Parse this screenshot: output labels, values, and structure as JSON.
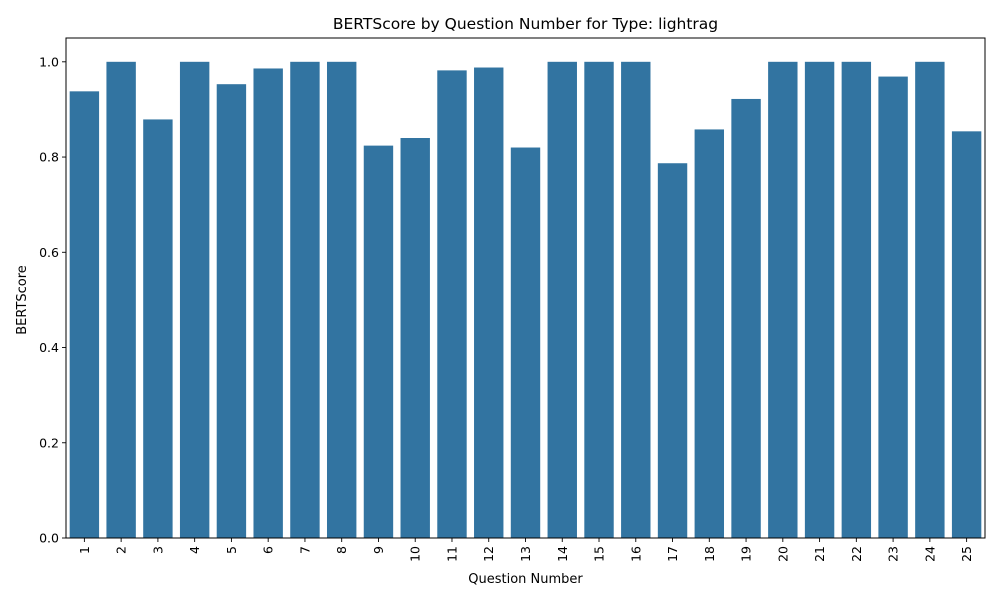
{
  "chart_data": {
    "type": "bar",
    "title": "BERTScore by Question Number for Type: lightrag",
    "xlabel": "Question Number",
    "ylabel": "BERTScore",
    "categories": [
      "1",
      "2",
      "3",
      "4",
      "5",
      "6",
      "7",
      "8",
      "9",
      "10",
      "11",
      "12",
      "13",
      "14",
      "15",
      "16",
      "17",
      "18",
      "19",
      "20",
      "21",
      "22",
      "23",
      "24",
      "25"
    ],
    "values": [
      0.938,
      1.0,
      0.879,
      1.0,
      0.953,
      0.986,
      1.0,
      1.0,
      0.824,
      0.84,
      0.982,
      0.988,
      0.82,
      1.0,
      1.0,
      1.0,
      0.787,
      0.858,
      0.922,
      1.0,
      1.0,
      1.0,
      0.969,
      1.0,
      0.854
    ],
    "yticks": [
      "0.0",
      "0.2",
      "0.4",
      "0.6",
      "0.8",
      "1.0"
    ],
    "ylim": [
      0,
      1.05
    ],
    "bar_color": "#3274a1",
    "grid": false,
    "legend": "none"
  }
}
